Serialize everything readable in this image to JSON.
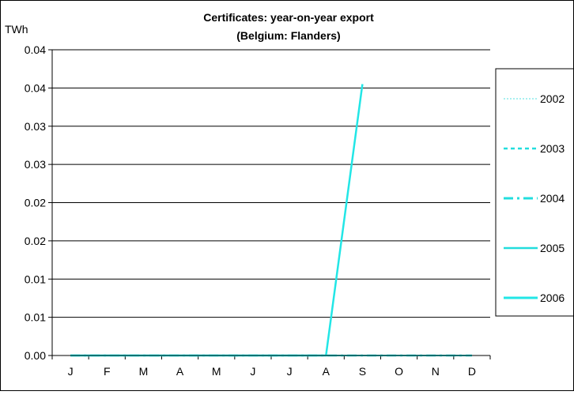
{
  "chart_data": {
    "type": "line",
    "title_line1": "Certificates: year-on-year export",
    "title_line2": "(Belgium: Flanders)",
    "ylabel": "TWh",
    "xlabel": "",
    "categories": [
      "J",
      "F",
      "M",
      "A",
      "M",
      "J",
      "J",
      "A",
      "S",
      "O",
      "N",
      "D"
    ],
    "ytick_labels": [
      "0.00",
      "0.01",
      "0.01",
      "0.02",
      "0.02",
      "0.03",
      "0.03",
      "0.04",
      "0.04"
    ],
    "ylim": [
      0,
      0.04
    ],
    "grid": true,
    "legend_position": "right",
    "series": [
      {
        "name": "2002",
        "values": [
          0,
          0,
          0,
          0,
          0,
          0,
          0,
          0,
          0,
          0,
          0,
          0
        ],
        "color": "#a8f0f0",
        "dash": "2,2",
        "width": 1.5
      },
      {
        "name": "2003",
        "values": [
          0,
          0,
          0,
          0,
          0,
          0,
          0,
          0,
          0,
          0,
          0,
          0
        ],
        "color": "#22dddd",
        "dash": "5,4",
        "width": 2
      },
      {
        "name": "2004",
        "values": [
          0,
          0,
          0,
          0,
          0,
          0,
          0,
          0,
          0,
          0,
          0,
          0
        ],
        "color": "#22dddd",
        "dash": "12,5,3,5",
        "width": 2.5
      },
      {
        "name": "2005",
        "values": [
          0,
          0,
          0,
          0,
          0,
          0,
          0,
          0,
          0,
          0,
          0,
          0
        ],
        "color": "#22dddd",
        "dash": "",
        "width": 2
      },
      {
        "name": "2006",
        "values": [
          0,
          0,
          0,
          0,
          0,
          0,
          0,
          0,
          0.0355,
          null,
          null,
          null
        ],
        "color": "#22e6e6",
        "dash": "",
        "width": 2.5
      }
    ]
  }
}
